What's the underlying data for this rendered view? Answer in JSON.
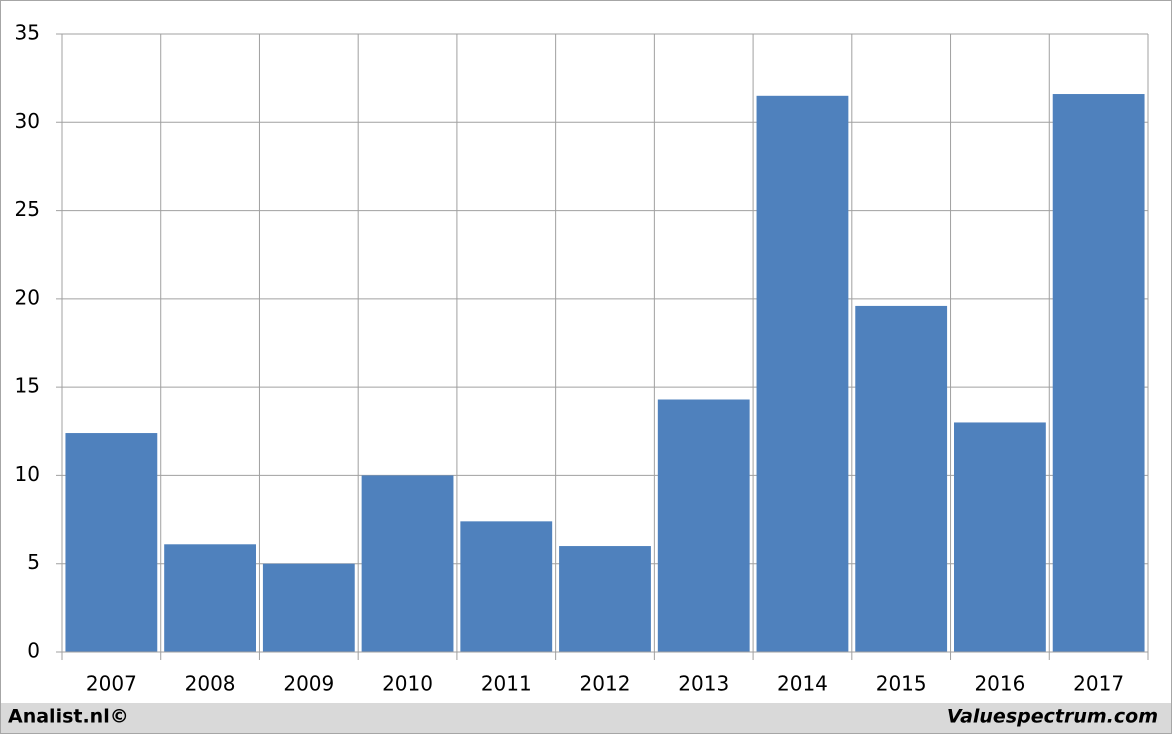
{
  "chart_data": {
    "type": "bar",
    "categories": [
      "2007",
      "2008",
      "2009",
      "2010",
      "2011",
      "2012",
      "2013",
      "2014",
      "2015",
      "2016",
      "2017"
    ],
    "values": [
      12.4,
      6.1,
      5.0,
      10.0,
      7.4,
      6.0,
      14.3,
      31.5,
      19.6,
      13.0,
      31.6
    ],
    "color": "#4f81bd",
    "ylim": [
      0,
      35
    ],
    "yticks": [
      0,
      5,
      10,
      15,
      20,
      25,
      30,
      35
    ],
    "grid": true
  },
  "footer": {
    "left": "Analist.nl©",
    "right": "Valuespectrum.com"
  }
}
